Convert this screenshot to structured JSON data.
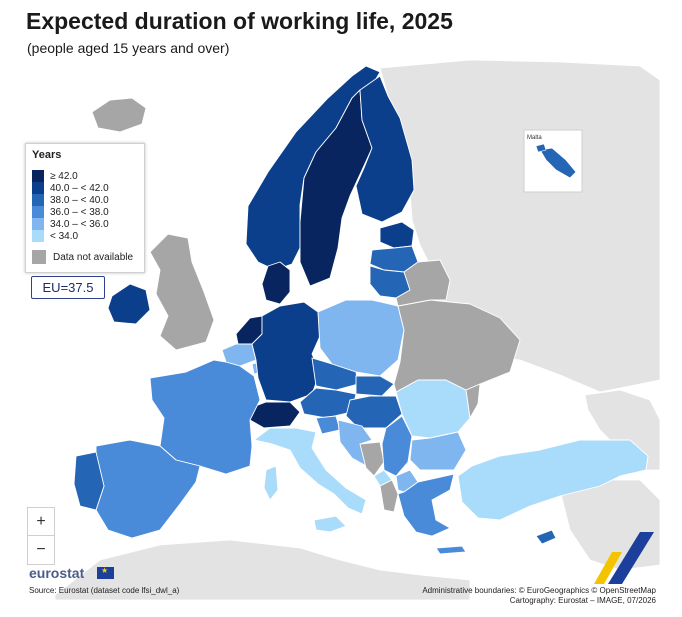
{
  "header": {
    "title": "Expected duration of working life, 2025",
    "subtitle": "(people aged 15 years and over)"
  },
  "legend": {
    "title": "Years",
    "classes": [
      {
        "label": "≥ 42.0",
        "color": "#08255f"
      },
      {
        "label": "40.0 – < 42.0",
        "color": "#0b3f8c"
      },
      {
        "label": "38.0 – < 40.0",
        "color": "#2565b5"
      },
      {
        "label": "36.0 – < 38.0",
        "color": "#4a8bd9"
      },
      {
        "label": "34.0 – < 36.0",
        "color": "#80b6ef"
      },
      {
        "label": "< 34.0",
        "color": "#a9dcfb"
      }
    ],
    "na_label": "Data not available",
    "na_color": "#a6a6a6"
  },
  "eu_value": "EU=37.5",
  "inset_label": "Malta",
  "zoom": {
    "in": "+",
    "out": "−"
  },
  "logo": "eurostat",
  "source": "Source: Eurostat (dataset code lfsi_dwl_a)",
  "credits": {
    "line1": "Administrative boundaries: © EuroGeographics © OpenStreetMap",
    "line2": "Cartography: Eurostat – IMAGE, 07/2026"
  },
  "colors": {
    "non_eu_land": "#e3e3e3",
    "border": "#ffffff",
    "sea": "#ffffff"
  },
  "countries": [
    {
      "id": "iceland",
      "class": "na"
    },
    {
      "id": "norway",
      "class": "c40"
    },
    {
      "id": "sweden",
      "class": "c42"
    },
    {
      "id": "finland",
      "class": "c40"
    },
    {
      "id": "estonia",
      "class": "c40"
    },
    {
      "id": "latvia",
      "class": "c38"
    },
    {
      "id": "lithuania",
      "class": "c38"
    },
    {
      "id": "denmark",
      "class": "c42"
    },
    {
      "id": "ireland",
      "class": "c40"
    },
    {
      "id": "united-kingdom",
      "class": "na"
    },
    {
      "id": "netherlands",
      "class": "c42"
    },
    {
      "id": "belgium",
      "class": "c34"
    },
    {
      "id": "luxembourg",
      "class": "c34"
    },
    {
      "id": "germany",
      "class": "c40"
    },
    {
      "id": "poland",
      "class": "c34"
    },
    {
      "id": "czechia",
      "class": "c38"
    },
    {
      "id": "slovakia",
      "class": "c38"
    },
    {
      "id": "austria",
      "class": "c38"
    },
    {
      "id": "switzerland",
      "class": "c42"
    },
    {
      "id": "hungary",
      "class": "c38"
    },
    {
      "id": "france",
      "class": "c36"
    },
    {
      "id": "spain",
      "class": "c36"
    },
    {
      "id": "portugal",
      "class": "c38"
    },
    {
      "id": "italy",
      "class": "lt34"
    },
    {
      "id": "slovenia",
      "class": "c36"
    },
    {
      "id": "croatia",
      "class": "c34"
    },
    {
      "id": "bosnia",
      "class": "na"
    },
    {
      "id": "serbia",
      "class": "c36"
    },
    {
      "id": "montenegro",
      "class": "lt34"
    },
    {
      "id": "albania",
      "class": "na"
    },
    {
      "id": "north-macedonia",
      "class": "c34"
    },
    {
      "id": "romania",
      "class": "lt34"
    },
    {
      "id": "bulgaria",
      "class": "c34"
    },
    {
      "id": "greece",
      "class": "c36"
    },
    {
      "id": "turkey",
      "class": "lt34"
    },
    {
      "id": "cyprus",
      "class": "c38"
    },
    {
      "id": "ukraine",
      "class": "na"
    },
    {
      "id": "belarus",
      "class": "na"
    },
    {
      "id": "moldova",
      "class": "na"
    },
    {
      "id": "malta",
      "class": "c38"
    }
  ]
}
